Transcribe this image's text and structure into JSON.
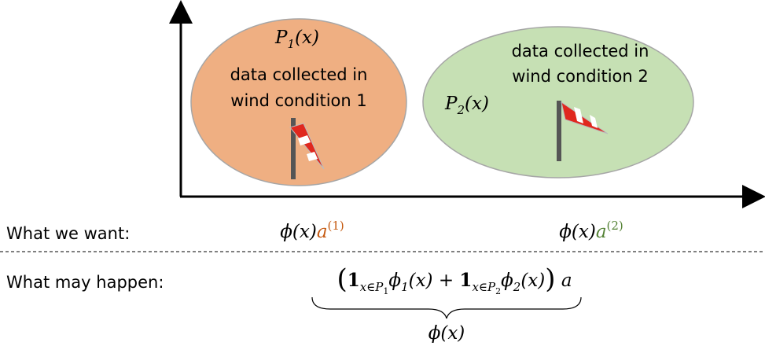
{
  "ellipses": [
    {
      "label": [
        {
          "text": "P",
          "role": "i"
        },
        {
          "text": "1",
          "role": "s"
        },
        {
          "text": "(x)",
          "role": "i"
        }
      ],
      "caption": [
        "data collected in",
        "wind condition 1"
      ]
    },
    {
      "label": [
        {
          "text": "P",
          "role": "i"
        },
        {
          "text": "2",
          "role": "s"
        },
        {
          "text": "(x)",
          "role": "i"
        }
      ],
      "caption": [
        "data collected in",
        "wind condition 2"
      ]
    }
  ],
  "rows": [
    {
      "label": "What we want:",
      "expressions": [
        [
          {
            "text": "ϕ(x)",
            "role": "i"
          },
          {
            "text": "a",
            "role": "i",
            "color": "#c55a11"
          },
          {
            "text": "(1)",
            "role": "S",
            "color": "#c55a11"
          }
        ],
        [
          {
            "text": "ϕ(x)",
            "role": "i"
          },
          {
            "text": "a",
            "role": "i",
            "color": "#548235"
          },
          {
            "text": "(2)",
            "role": "S",
            "color": "#548235"
          }
        ]
      ]
    },
    {
      "label": "What may happen:",
      "expressions": [
        [
          {
            "text": "(",
            "role": "B"
          },
          {
            "text": "1",
            "role": "b"
          },
          {
            "text": "x∈P",
            "role": "s"
          },
          {
            "text": "1",
            "role": "ss"
          },
          {
            "text": "ϕ",
            "role": "i"
          },
          {
            "text": "1",
            "role": "s"
          },
          {
            "text": "(x) + ",
            "role": "i"
          },
          {
            "text": "1",
            "role": "b"
          },
          {
            "text": "x∈P",
            "role": "s"
          },
          {
            "text": "2",
            "role": "ss"
          },
          {
            "text": "ϕ",
            "role": "i"
          },
          {
            "text": "2",
            "role": "s"
          },
          {
            "text": "(x)",
            "role": "i"
          },
          {
            "text": ")",
            "role": "B"
          },
          {
            "text": " a",
            "role": "i"
          }
        ]
      ],
      "brace_label": [
        {
          "text": "ϕ(x)",
          "role": "i"
        }
      ]
    }
  ]
}
